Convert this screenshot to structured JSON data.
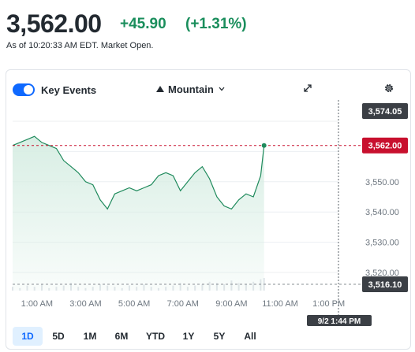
{
  "quote": {
    "price": "3,562.00",
    "change": "+45.90",
    "change_pct": "(+1.31%)",
    "as_of": "As of 10:20:33 AM EDT. Market Open."
  },
  "toolbar": {
    "key_events_label": "Key Events",
    "key_events_enabled": true,
    "chart_style_label": "Mountain"
  },
  "colors": {
    "up": "#1a8e5c",
    "line": "#1f8a5c",
    "fill": "#d8eee4",
    "prev_close": "#c8102e",
    "accent": "#0f69ff",
    "tag_dark": "#3b3f45"
  },
  "chart_data": {
    "type": "area",
    "x_ticks": [
      "1:00 AM",
      "3:00 AM",
      "5:00 AM",
      "7:00 AM",
      "9:00 AM",
      "11:00 AM",
      "1:00 PM"
    ],
    "y_ticks": [
      "3,520.00",
      "3,530.00",
      "3,540.00",
      "3,550.00"
    ],
    "ylim": [
      3514,
      3576
    ],
    "xlim": [
      0,
      13.4
    ],
    "grid": true,
    "current_price_label": "3,562.00",
    "high_label": "3,574.05",
    "low_label": "3,516.10",
    "crosshair_label": "9/2 1:44 PM",
    "series": [
      {
        "x": [
          0,
          0.3,
          0.6,
          0.9,
          1.2,
          1.5,
          1.8,
          2.1,
          2.4,
          2.7,
          3.0,
          3.3,
          3.6,
          3.9,
          4.2,
          4.5,
          4.8,
          5.1,
          5.4,
          5.7,
          6.0,
          6.3,
          6.6,
          6.9,
          7.2,
          7.5,
          7.8,
          8.1,
          8.4,
          8.7,
          9.0,
          9.3,
          9.6,
          9.9,
          10.2,
          10.34
        ],
        "values": [
          3562,
          3563,
          3564,
          3565,
          3563,
          3562,
          3561,
          3557,
          3555,
          3553,
          3550,
          3549,
          3544,
          3541,
          3546,
          3547,
          3548,
          3547,
          3548,
          3549,
          3552,
          3553,
          3552,
          3547,
          3550,
          3553,
          3555,
          3551,
          3545,
          3542,
          3541,
          3544,
          3546,
          3545,
          3552,
          3562
        ]
      }
    ],
    "volume": [
      3,
      2,
      4,
      3,
      5,
      2,
      3,
      4,
      6,
      3,
      2,
      3,
      5,
      4,
      3,
      2,
      4,
      3,
      5,
      3,
      2,
      3,
      4,
      6,
      3,
      4,
      5,
      7,
      6,
      5,
      8,
      6,
      5,
      7,
      9,
      10
    ]
  },
  "range_buttons": [
    {
      "label": "1D",
      "active": true
    },
    {
      "label": "5D",
      "active": false
    },
    {
      "label": "1M",
      "active": false
    },
    {
      "label": "6M",
      "active": false
    },
    {
      "label": "YTD",
      "active": false
    },
    {
      "label": "1Y",
      "active": false
    },
    {
      "label": "5Y",
      "active": false
    },
    {
      "label": "All",
      "active": false
    }
  ]
}
